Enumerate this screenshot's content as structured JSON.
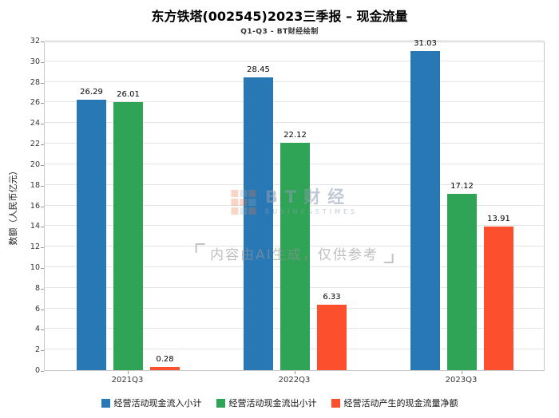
{
  "title": "东方铁塔(002545)2023三季报 – 现金流量",
  "subtitle": "Q1-Q3 - BT财经绘制",
  "watermark": {
    "logo_text": "BT财经",
    "logo_subtext": "BUSINESSTIMES",
    "disclaimer": "内容由AI生成，仅供参考"
  },
  "chart_data": {
    "type": "bar",
    "categories": [
      "2021Q3",
      "2022Q3",
      "2023Q3"
    ],
    "series": [
      {
        "name": "经营活动现金流入小计",
        "color": "#2878b5",
        "values": [
          26.29,
          28.45,
          31.03
        ]
      },
      {
        "name": "经营活动现金流出小计",
        "color": "#2fa356",
        "values": [
          26.01,
          22.12,
          17.12
        ]
      },
      {
        "name": "经营活动产生的现金流量净额",
        "color": "#fc4f2e",
        "values": [
          0.28,
          6.33,
          13.91
        ]
      }
    ],
    "ylabel": "数额（人民币亿元）",
    "ylim": [
      0,
      32
    ],
    "ytick_step": 2,
    "grid": true,
    "legend_position": "bottom",
    "value_labels": true
  }
}
